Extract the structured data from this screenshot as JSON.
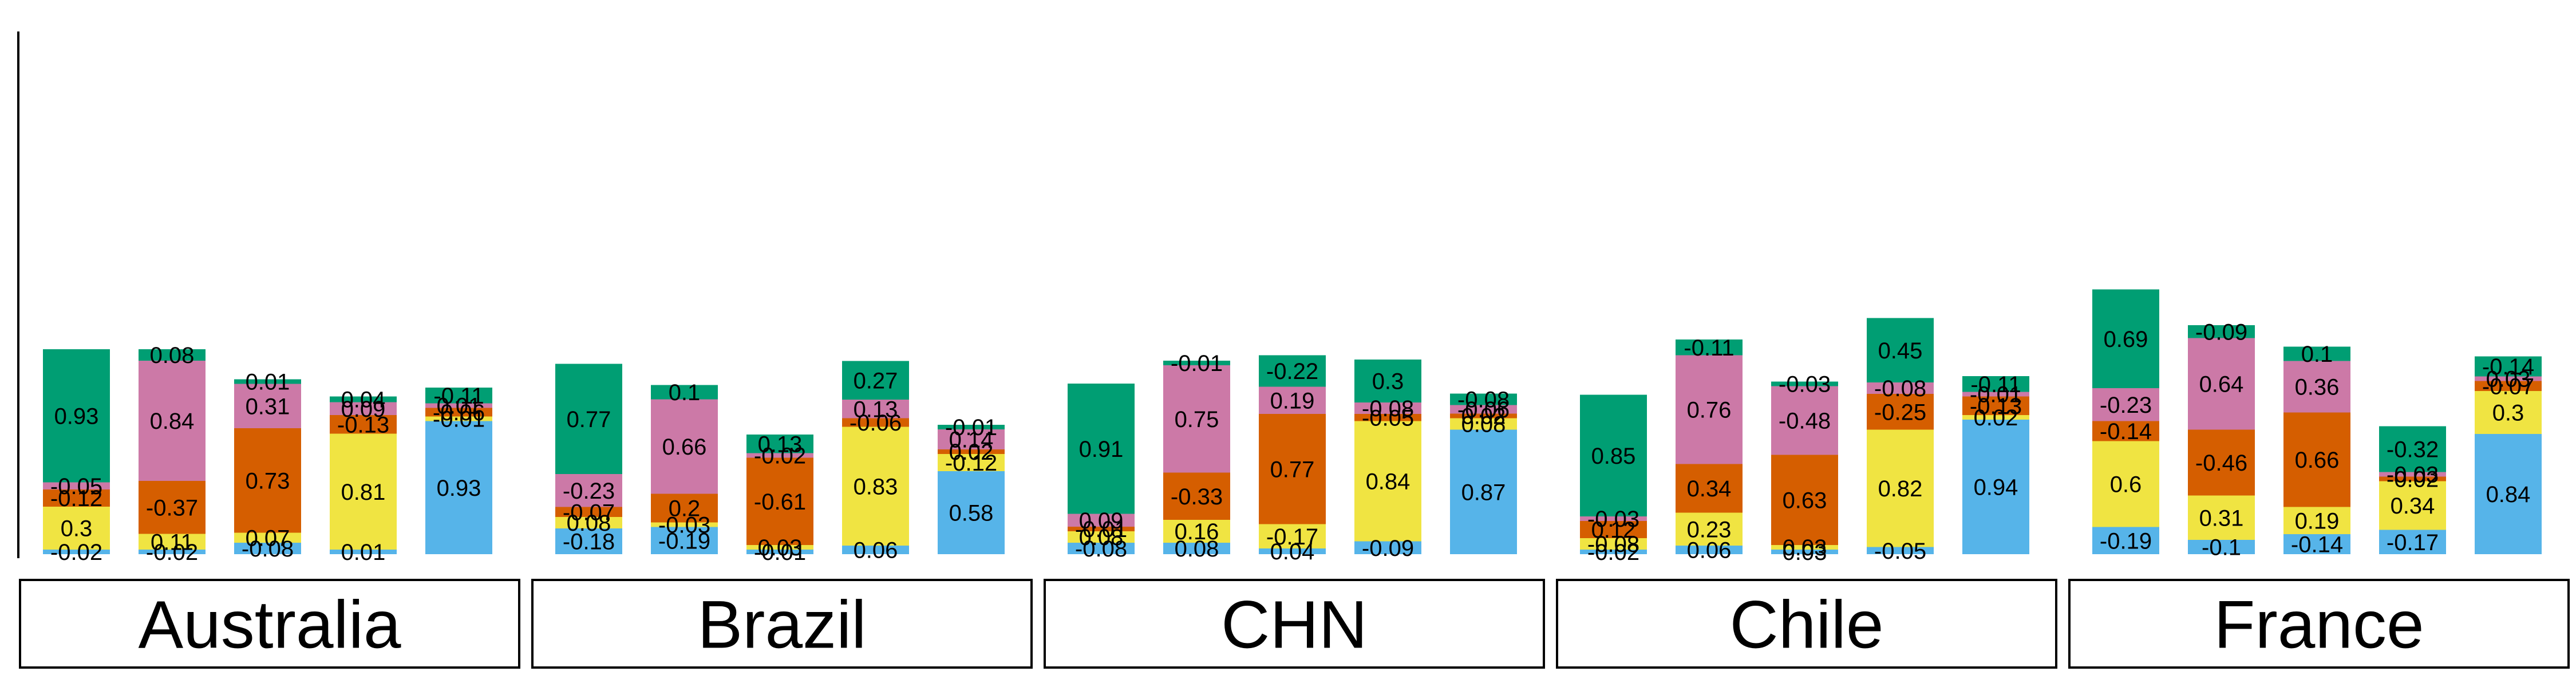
{
  "chart_data": {
    "type": "bar",
    "stacked": true,
    "title": "",
    "xlabel": "",
    "ylabel": "",
    "grid": false,
    "legend": "none",
    "stack_order_bottom_to_top": [
      "blue",
      "yellow",
      "orange",
      "pink",
      "green"
    ],
    "colors": {
      "blue": "#56B4E9",
      "yellow": "#F0E442",
      "orange": "#D55E00",
      "pink": "#CC79A7",
      "green": "#009E73"
    },
    "groups": [
      {
        "name": "Australia",
        "bars": [
          {
            "segments": [
              {
                "color": "blue",
                "value": -0.02
              },
              {
                "color": "yellow",
                "value": 0.3
              },
              {
                "color": "orange",
                "value": -0.12
              },
              {
                "color": "pink",
                "value": -0.05
              },
              {
                "color": "green",
                "value": 0.93
              }
            ]
          },
          {
            "segments": [
              {
                "color": "blue",
                "value": -0.02
              },
              {
                "color": "yellow",
                "value": 0.11
              },
              {
                "color": "orange",
                "value": -0.37
              },
              {
                "color": "pink",
                "value": 0.84
              },
              {
                "color": "green",
                "value": 0.08
              }
            ]
          },
          {
            "segments": [
              {
                "color": "blue",
                "value": -0.08
              },
              {
                "color": "yellow",
                "value": 0.07
              },
              {
                "color": "orange",
                "value": 0.73
              },
              {
                "color": "pink",
                "value": 0.31
              },
              {
                "color": "green",
                "value": 0.01
              }
            ]
          },
          {
            "segments": [
              {
                "color": "blue",
                "value": 0.01
              },
              {
                "color": "yellow",
                "value": 0.81
              },
              {
                "color": "orange",
                "value": -0.13
              },
              {
                "color": "pink",
                "value": 0.09
              },
              {
                "color": "green",
                "value": 0.04
              }
            ]
          },
          {
            "segments": [
              {
                "color": "blue",
                "value": 0.93
              },
              {
                "color": "yellow",
                "value": -0.01
              },
              {
                "color": "orange",
                "value": -0.06
              },
              {
                "color": "pink",
                "value": 0.01
              },
              {
                "color": "green",
                "value": -0.11
              }
            ]
          }
        ]
      },
      {
        "name": "Brazil",
        "bars": [
          {
            "segments": [
              {
                "color": "blue",
                "value": -0.18
              },
              {
                "color": "yellow",
                "value": 0.08
              },
              {
                "color": "orange",
                "value": -0.07
              },
              {
                "color": "pink",
                "value": -0.23
              },
              {
                "color": "green",
                "value": 0.77
              }
            ]
          },
          {
            "segments": [
              {
                "color": "blue",
                "value": -0.19
              },
              {
                "color": "yellow",
                "value": -0.03
              },
              {
                "color": "orange",
                "value": 0.2
              },
              {
                "color": "pink",
                "value": 0.66
              },
              {
                "color": "green",
                "value": 0.1
              }
            ]
          },
          {
            "segments": [
              {
                "color": "blue",
                "value": -0.01
              },
              {
                "color": "yellow",
                "value": 0.03
              },
              {
                "color": "orange",
                "value": -0.61
              },
              {
                "color": "pink",
                "value": -0.02
              },
              {
                "color": "green",
                "value": 0.13
              }
            ]
          },
          {
            "segments": [
              {
                "color": "blue",
                "value": 0.06
              },
              {
                "color": "yellow",
                "value": 0.83
              },
              {
                "color": "orange",
                "value": -0.06
              },
              {
                "color": "pink",
                "value": 0.13
              },
              {
                "color": "green",
                "value": 0.27
              }
            ]
          },
          {
            "segments": [
              {
                "color": "blue",
                "value": 0.58
              },
              {
                "color": "yellow",
                "value": -0.12
              },
              {
                "color": "orange",
                "value": 0.02
              },
              {
                "color": "pink",
                "value": 0.14
              },
              {
                "color": "green",
                "value": -0.01
              }
            ]
          }
        ]
      },
      {
        "name": "CHN",
        "bars": [
          {
            "segments": [
              {
                "color": "blue",
                "value": -0.08
              },
              {
                "color": "yellow",
                "value": 0.08
              },
              {
                "color": "orange",
                "value": -0.01
              },
              {
                "color": "pink",
                "value": 0.09
              },
              {
                "color": "green",
                "value": 0.91
              }
            ]
          },
          {
            "segments": [
              {
                "color": "blue",
                "value": 0.08
              },
              {
                "color": "yellow",
                "value": 0.16
              },
              {
                "color": "orange",
                "value": -0.33
              },
              {
                "color": "pink",
                "value": 0.75
              },
              {
                "color": "green",
                "value": -0.01
              }
            ]
          },
          {
            "segments": [
              {
                "color": "blue",
                "value": 0.04
              },
              {
                "color": "yellow",
                "value": -0.17
              },
              {
                "color": "orange",
                "value": 0.77
              },
              {
                "color": "pink",
                "value": 0.19
              },
              {
                "color": "green",
                "value": -0.22
              }
            ]
          },
          {
            "segments": [
              {
                "color": "blue",
                "value": -0.09
              },
              {
                "color": "yellow",
                "value": 0.84
              },
              {
                "color": "orange",
                "value": -0.05
              },
              {
                "color": "pink",
                "value": -0.08
              },
              {
                "color": "green",
                "value": 0.3
              }
            ]
          },
          {
            "segments": [
              {
                "color": "blue",
                "value": 0.87
              },
              {
                "color": "yellow",
                "value": 0.08
              },
              {
                "color": "orange",
                "value": 0.02
              },
              {
                "color": "pink",
                "value": -0.06
              },
              {
                "color": "green",
                "value": -0.08
              }
            ]
          }
        ]
      },
      {
        "name": "Chile",
        "bars": [
          {
            "segments": [
              {
                "color": "blue",
                "value": -0.02
              },
              {
                "color": "yellow",
                "value": -0.08
              },
              {
                "color": "orange",
                "value": 0.12
              },
              {
                "color": "pink",
                "value": -0.03
              },
              {
                "color": "green",
                "value": 0.85
              }
            ]
          },
          {
            "segments": [
              {
                "color": "blue",
                "value": 0.06
              },
              {
                "color": "yellow",
                "value": 0.23
              },
              {
                "color": "orange",
                "value": 0.34
              },
              {
                "color": "pink",
                "value": 0.76
              },
              {
                "color": "green",
                "value": -0.11
              }
            ]
          },
          {
            "segments": [
              {
                "color": "blue",
                "value": 0.03
              },
              {
                "color": "yellow",
                "value": 0.03
              },
              {
                "color": "orange",
                "value": 0.63
              },
              {
                "color": "pink",
                "value": -0.48
              },
              {
                "color": "green",
                "value": -0.03
              }
            ]
          },
          {
            "segments": [
              {
                "color": "blue",
                "value": -0.05
              },
              {
                "color": "yellow",
                "value": 0.82
              },
              {
                "color": "orange",
                "value": -0.25
              },
              {
                "color": "pink",
                "value": -0.08
              },
              {
                "color": "green",
                "value": 0.45
              }
            ]
          },
          {
            "segments": [
              {
                "color": "blue",
                "value": 0.94
              },
              {
                "color": "yellow",
                "value": 0.02
              },
              {
                "color": "orange",
                "value": -0.13
              },
              {
                "color": "pink",
                "value": -0.01
              },
              {
                "color": "green",
                "value": -0.11
              }
            ]
          }
        ]
      },
      {
        "name": "France",
        "bars": [
          {
            "segments": [
              {
                "color": "blue",
                "value": -0.19
              },
              {
                "color": "yellow",
                "value": 0.6
              },
              {
                "color": "orange",
                "value": -0.14
              },
              {
                "color": "pink",
                "value": -0.23
              },
              {
                "color": "green",
                "value": 0.69
              }
            ]
          },
          {
            "segments": [
              {
                "color": "blue",
                "value": -0.1
              },
              {
                "color": "yellow",
                "value": 0.31
              },
              {
                "color": "orange",
                "value": -0.46
              },
              {
                "color": "pink",
                "value": 0.64
              },
              {
                "color": "green",
                "value": -0.09
              }
            ]
          },
          {
            "segments": [
              {
                "color": "blue",
                "value": -0.14
              },
              {
                "color": "yellow",
                "value": 0.19
              },
              {
                "color": "orange",
                "value": 0.66
              },
              {
                "color": "pink",
                "value": 0.36
              },
              {
                "color": "green",
                "value": 0.1
              }
            ]
          },
          {
            "segments": [
              {
                "color": "blue",
                "value": -0.17
              },
              {
                "color": "yellow",
                "value": 0.34
              },
              {
                "color": "orange",
                "value": -0.02
              },
              {
                "color": "pink",
                "value": -0.03
              },
              {
                "color": "green",
                "value": -0.32
              }
            ]
          },
          {
            "segments": [
              {
                "color": "blue",
                "value": 0.84
              },
              {
                "color": "yellow",
                "value": 0.3
              },
              {
                "color": "orange",
                "value": -0.07
              },
              {
                "color": "pink",
                "value": 0.03
              },
              {
                "color": "green",
                "value": -0.14
              }
            ]
          }
        ]
      }
    ]
  }
}
